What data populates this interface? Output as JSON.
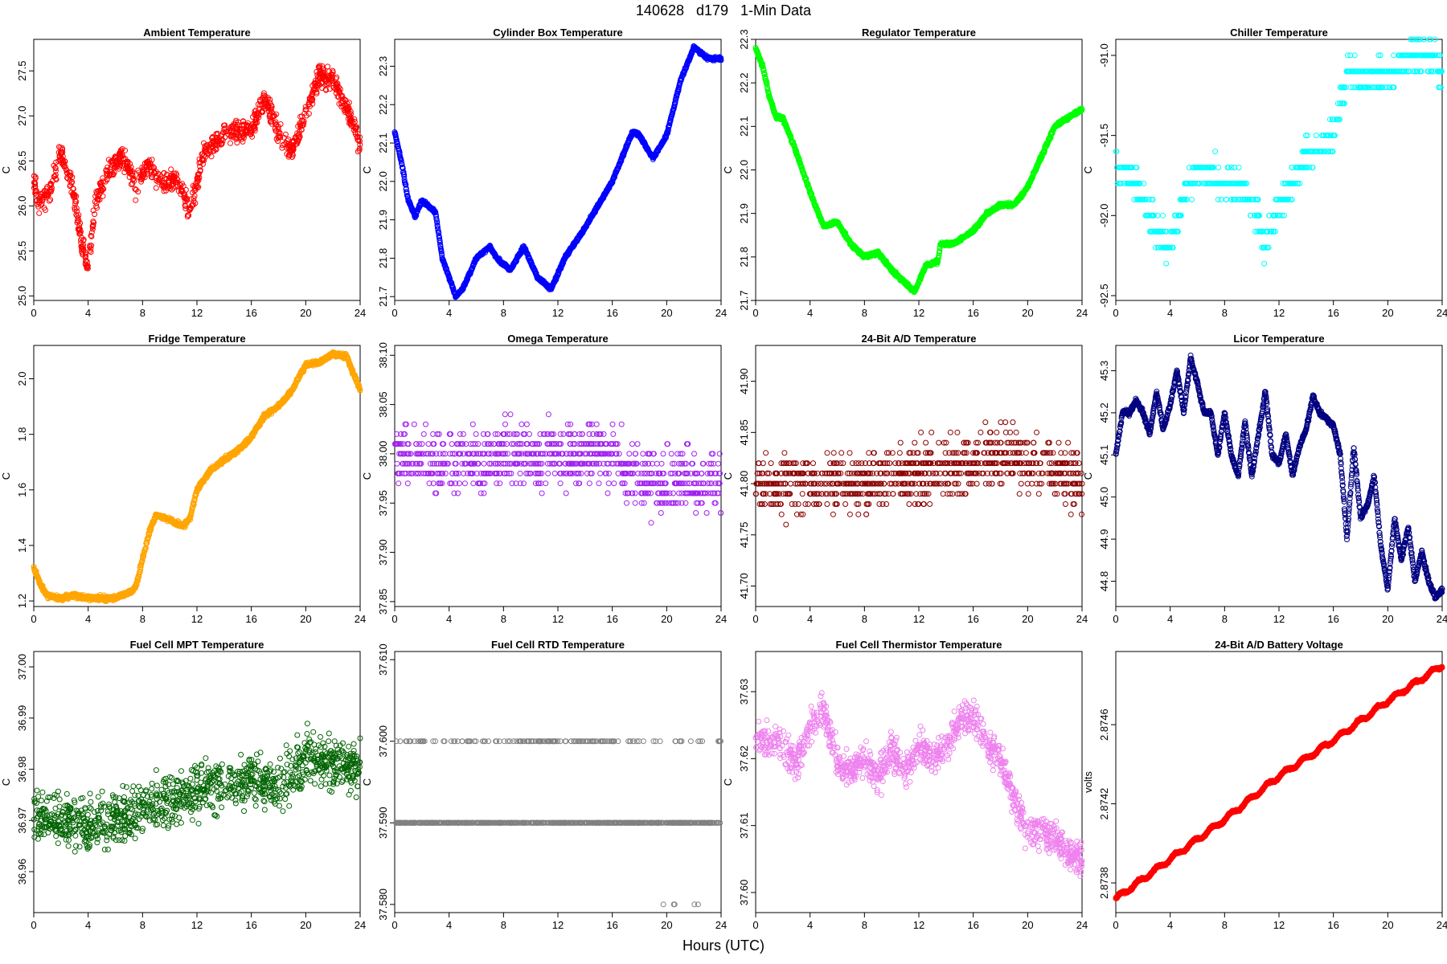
{
  "figure": {
    "title": "140628   d179   1-Min Data",
    "xlabel": "Hours (UTC)"
  },
  "chart_data": [
    {
      "type": "scatter",
      "title": "Ambient Temperature",
      "ylabel": "C",
      "color": "#ff0000",
      "xlim": [
        0,
        24
      ],
      "ylim": [
        24.95,
        27.85
      ],
      "xticks": [
        0,
        4,
        8,
        12,
        16,
        20,
        24
      ],
      "yticks": [
        25.0,
        25.5,
        26.0,
        26.5,
        27.0,
        27.5
      ],
      "ytick_labels": [
        "25.0",
        "25.5",
        "26.0",
        "26.5",
        "27.0",
        "27.5"
      ],
      "style": "noisy",
      "noise": 0.17,
      "trend": [
        [
          0,
          26.3
        ],
        [
          0.3,
          26.05
        ],
        [
          1,
          26.1
        ],
        [
          2,
          26.6
        ],
        [
          3,
          26.1
        ],
        [
          3.5,
          25.6
        ],
        [
          4,
          25.3
        ],
        [
          4.5,
          26.0
        ],
        [
          5.5,
          26.4
        ],
        [
          6.5,
          26.55
        ],
        [
          7.5,
          26.2
        ],
        [
          8.5,
          26.5
        ],
        [
          9.5,
          26.25
        ],
        [
          10.5,
          26.3
        ],
        [
          11.5,
          25.95
        ],
        [
          12.5,
          26.6
        ],
        [
          14,
          26.8
        ],
        [
          16,
          26.85
        ],
        [
          17,
          27.2
        ],
        [
          18,
          26.8
        ],
        [
          19,
          26.6
        ],
        [
          20,
          27.05
        ],
        [
          21,
          27.45
        ],
        [
          22,
          27.4
        ],
        [
          23,
          27.1
        ],
        [
          24,
          26.7
        ]
      ]
    },
    {
      "type": "scatter",
      "title": "Cylinder Box Temperature",
      "ylabel": "C",
      "color": "#0000ff",
      "xlim": [
        0,
        24
      ],
      "ylim": [
        21.69,
        22.37
      ],
      "xticks": [
        0,
        4,
        8,
        12,
        16,
        20,
        24
      ],
      "yticks": [
        21.7,
        21.8,
        21.9,
        22.0,
        22.1,
        22.2,
        22.3
      ],
      "ytick_labels": [
        "21.7",
        "21.8",
        "21.9",
        "22.0",
        "22.1",
        "22.2",
        "22.3"
      ],
      "style": "smooth",
      "noise": 0.003,
      "trend": [
        [
          0,
          22.13
        ],
        [
          0.5,
          22.05
        ],
        [
          1,
          21.95
        ],
        [
          1.5,
          21.91
        ],
        [
          2,
          21.95
        ],
        [
          3,
          21.92
        ],
        [
          3.5,
          21.8
        ],
        [
          4.5,
          21.7
        ],
        [
          5,
          21.72
        ],
        [
          6,
          21.8
        ],
        [
          7,
          21.83
        ],
        [
          7.5,
          21.8
        ],
        [
          8.5,
          21.77
        ],
        [
          9.5,
          21.83
        ],
        [
          10.5,
          21.75
        ],
        [
          11.5,
          21.72
        ],
        [
          12.5,
          21.8
        ],
        [
          14,
          21.88
        ],
        [
          16,
          22.0
        ],
        [
          17.5,
          22.13
        ],
        [
          18,
          22.12
        ],
        [
          19,
          22.06
        ],
        [
          20,
          22.12
        ],
        [
          21,
          22.26
        ],
        [
          22,
          22.35
        ],
        [
          23,
          22.32
        ],
        [
          24,
          22.32
        ]
      ]
    },
    {
      "type": "scatter",
      "title": "Regulator Temperature",
      "ylabel": "C",
      "color": "#00ff00",
      "xlim": [
        0,
        24
      ],
      "ylim": [
        21.7,
        22.3
      ],
      "xticks": [
        0,
        4,
        8,
        12,
        16,
        20,
        24
      ],
      "yticks": [
        21.7,
        21.8,
        21.9,
        22.0,
        22.1,
        22.2,
        22.3
      ],
      "ytick_labels": [
        "21.7",
        "21.8",
        "21.9",
        "22.0",
        "22.1",
        "22.2",
        "22.3"
      ],
      "style": "smooth",
      "noise": 0.003,
      "trend": [
        [
          0,
          22.28
        ],
        [
          0.5,
          22.24
        ],
        [
          1,
          22.17
        ],
        [
          1.5,
          22.12
        ],
        [
          2,
          22.12
        ],
        [
          3,
          22.04
        ],
        [
          4,
          21.95
        ],
        [
          5,
          21.87
        ],
        [
          6,
          21.88
        ],
        [
          7,
          21.83
        ],
        [
          8,
          21.8
        ],
        [
          9,
          21.81
        ],
        [
          10,
          21.77
        ],
        [
          11,
          21.74
        ],
        [
          11.7,
          21.72
        ],
        [
          12.5,
          21.78
        ],
        [
          13.4,
          21.79
        ],
        [
          13.6,
          21.83
        ],
        [
          14.5,
          21.83
        ],
        [
          16,
          21.86
        ],
        [
          17,
          21.9
        ],
        [
          18,
          21.92
        ],
        [
          19,
          21.92
        ],
        [
          20,
          21.96
        ],
        [
          21,
          22.03
        ],
        [
          22,
          22.1
        ],
        [
          23,
          22.12
        ],
        [
          24,
          22.14
        ]
      ]
    },
    {
      "type": "scatter",
      "title": "Chiller Temperature",
      "ylabel": "C",
      "color": "#00ffff",
      "xlim": [
        0,
        24
      ],
      "ylim": [
        -92.53,
        -90.9
      ],
      "xticks": [
        0,
        4,
        8,
        12,
        16,
        20,
        24
      ],
      "yticks": [
        -92.5,
        -92.0,
        -91.5,
        -91.0
      ],
      "ytick_labels": [
        "-92.5",
        "-92.0",
        "-91.5",
        "-91.0"
      ],
      "style": "quantized",
      "noise": 0.13,
      "step": 0.1,
      "trend": [
        [
          0,
          -91.7
        ],
        [
          1,
          -91.75
        ],
        [
          2,
          -91.9
        ],
        [
          3,
          -92.1
        ],
        [
          4,
          -92.2
        ],
        [
          5,
          -91.85
        ],
        [
          6,
          -91.7
        ],
        [
          7,
          -91.75
        ],
        [
          8,
          -91.8
        ],
        [
          9,
          -91.8
        ],
        [
          10,
          -91.9
        ],
        [
          11,
          -92.2
        ],
        [
          12,
          -91.95
        ],
        [
          13,
          -91.8
        ],
        [
          14,
          -91.6
        ],
        [
          15,
          -91.6
        ],
        [
          16,
          -91.5
        ],
        [
          17,
          -91.1
        ],
        [
          18,
          -91.15
        ],
        [
          19,
          -91.15
        ],
        [
          20,
          -91.1
        ],
        [
          21,
          -91.05
        ],
        [
          22,
          -91.0
        ],
        [
          23,
          -91.0
        ],
        [
          24,
          -91.1
        ]
      ]
    },
    {
      "type": "scatter",
      "title": "Fridge Temperature",
      "ylabel": "C",
      "color": "#ffa500",
      "xlim": [
        0,
        24
      ],
      "ylim": [
        1.18,
        2.12
      ],
      "xticks": [
        0,
        4,
        8,
        12,
        16,
        20,
        24
      ],
      "yticks": [
        1.2,
        1.4,
        1.6,
        1.8,
        2.0
      ],
      "ytick_labels": [
        "1.2",
        "1.4",
        "1.6",
        "1.8",
        "2.0"
      ],
      "style": "smooth",
      "noise": 0.006,
      "trend": [
        [
          0,
          1.32
        ],
        [
          0.5,
          1.26
        ],
        [
          1,
          1.22
        ],
        [
          2,
          1.21
        ],
        [
          3,
          1.22
        ],
        [
          4,
          1.21
        ],
        [
          5,
          1.21
        ],
        [
          6,
          1.21
        ],
        [
          7,
          1.23
        ],
        [
          7.5,
          1.25
        ],
        [
          8,
          1.35
        ],
        [
          8.5,
          1.45
        ],
        [
          9,
          1.51
        ],
        [
          10,
          1.49
        ],
        [
          11,
          1.47
        ],
        [
          11.5,
          1.5
        ],
        [
          12,
          1.6
        ],
        [
          13,
          1.67
        ],
        [
          14,
          1.71
        ],
        [
          15,
          1.74
        ],
        [
          16,
          1.79
        ],
        [
          17,
          1.87
        ],
        [
          18,
          1.9
        ],
        [
          19,
          1.96
        ],
        [
          20,
          2.05
        ],
        [
          21,
          2.06
        ],
        [
          22,
          2.09
        ],
        [
          23,
          2.08
        ],
        [
          23.5,
          2.02
        ],
        [
          24,
          1.96
        ]
      ]
    },
    {
      "type": "scatter",
      "title": "Omega Temperature",
      "ylabel": "C",
      "color": "#a020f0",
      "xlim": [
        0,
        24
      ],
      "ylim": [
        37.845,
        38.11
      ],
      "xticks": [
        0,
        4,
        8,
        12,
        16,
        20,
        24
      ],
      "yticks": [
        37.85,
        37.9,
        37.95,
        38.0,
        38.05,
        38.1
      ],
      "ytick_labels": [
        "37.85",
        "37.90",
        "37.95",
        "38.00",
        "38.05",
        "38.10"
      ],
      "style": "quantized",
      "noise": 0.045,
      "step": 0.01,
      "trend": [
        [
          0,
          38.0
        ],
        [
          4,
          37.99
        ],
        [
          8,
          38.0
        ],
        [
          12,
          38.0
        ],
        [
          16,
          38.0
        ],
        [
          17,
          37.98
        ],
        [
          20,
          37.97
        ],
        [
          24,
          37.97
        ]
      ]
    },
    {
      "type": "scatter",
      "title": "24-Bit A/D Temperature",
      "ylabel": "C",
      "color": "#8b0000",
      "xlim": [
        0,
        24
      ],
      "ylim": [
        41.68,
        41.935
      ],
      "xticks": [
        0,
        4,
        8,
        12,
        16,
        20,
        24
      ],
      "yticks": [
        41.7,
        41.75,
        41.8,
        41.85,
        41.9
      ],
      "ytick_labels": [
        "41.70",
        "41.75",
        "41.80",
        "41.85",
        "41.90"
      ],
      "style": "quantized",
      "noise": 0.04,
      "step": 0.01,
      "trend": [
        [
          0,
          41.8
        ],
        [
          8,
          41.8
        ],
        [
          12,
          41.81
        ],
        [
          16,
          41.82
        ],
        [
          18,
          41.83
        ],
        [
          24,
          41.8
        ]
      ]
    },
    {
      "type": "scatter",
      "title": "Licor Temperature",
      "ylabel": "C",
      "color": "#000080",
      "xlim": [
        0,
        24
      ],
      "ylim": [
        44.74,
        45.36
      ],
      "xticks": [
        0,
        4,
        8,
        12,
        16,
        20,
        24
      ],
      "yticks": [
        44.8,
        44.9,
        45.0,
        45.1,
        45.2,
        45.3
      ],
      "ytick_labels": [
        "44.8",
        "44.9",
        "45.0",
        "45.1",
        "45.2",
        "45.3"
      ],
      "style": "smooth",
      "noise": 0.004,
      "trend": [
        [
          0,
          45.1
        ],
        [
          0.5,
          45.2
        ],
        [
          1,
          45.2
        ],
        [
          1.5,
          45.23
        ],
        [
          2,
          45.2
        ],
        [
          2.5,
          45.15
        ],
        [
          3,
          45.25
        ],
        [
          3.5,
          45.16
        ],
        [
          4,
          45.22
        ],
        [
          4.5,
          45.3
        ],
        [
          5,
          45.2
        ],
        [
          5.5,
          45.33
        ],
        [
          6,
          45.27
        ],
        [
          6.5,
          45.2
        ],
        [
          7,
          45.2
        ],
        [
          7.5,
          45.1
        ],
        [
          8,
          45.2
        ],
        [
          8.5,
          45.1
        ],
        [
          9,
          45.05
        ],
        [
          9.5,
          45.18
        ],
        [
          10,
          45.05
        ],
        [
          10.5,
          45.15
        ],
        [
          11,
          45.25
        ],
        [
          11.5,
          45.1
        ],
        [
          12,
          45.08
        ],
        [
          12.5,
          45.15
        ],
        [
          13,
          45.05
        ],
        [
          13.5,
          45.12
        ],
        [
          14,
          45.16
        ],
        [
          14.5,
          45.24
        ],
        [
          15,
          45.2
        ],
        [
          16,
          45.17
        ],
        [
          16.5,
          45.1
        ],
        [
          17,
          44.9
        ],
        [
          17.5,
          45.12
        ],
        [
          18,
          44.95
        ],
        [
          18.5,
          44.98
        ],
        [
          19,
          45.05
        ],
        [
          19.5,
          44.88
        ],
        [
          20,
          44.78
        ],
        [
          20.5,
          44.95
        ],
        [
          21,
          44.85
        ],
        [
          21.5,
          44.93
        ],
        [
          22,
          44.8
        ],
        [
          22.5,
          44.87
        ],
        [
          23,
          44.8
        ],
        [
          23.5,
          44.76
        ],
        [
          24,
          44.78
        ]
      ]
    },
    {
      "type": "scatter",
      "title": "Fuel Cell MPT Temperature",
      "ylabel": "C",
      "color": "#006400",
      "xlim": [
        0,
        24
      ],
      "ylim": [
        36.952,
        37.003
      ],
      "xticks": [
        0,
        4,
        8,
        12,
        16,
        20,
        24
      ],
      "yticks": [
        36.96,
        36.97,
        36.98,
        36.99,
        37.0
      ],
      "ytick_labels": [
        "36.96",
        "36.97",
        "36.98",
        "36.99",
        "37.00"
      ],
      "style": "noisy",
      "noise": 0.007,
      "trend": [
        [
          0,
          36.971
        ],
        [
          4,
          36.969
        ],
        [
          8,
          36.972
        ],
        [
          12,
          36.976
        ],
        [
          16,
          36.978
        ],
        [
          18,
          36.976
        ],
        [
          20,
          36.982
        ],
        [
          24,
          36.98
        ]
      ]
    },
    {
      "type": "scatter",
      "title": "Fuel Cell RTD Temperature",
      "ylabel": "C",
      "color": "#808080",
      "xlim": [
        0,
        24
      ],
      "ylim": [
        37.579,
        37.611
      ],
      "xticks": [
        0,
        4,
        8,
        12,
        16,
        20,
        24
      ],
      "yticks": [
        37.58,
        37.59,
        37.6,
        37.61
      ],
      "ytick_labels": [
        "37.580",
        "37.590",
        "37.600",
        "37.610"
      ],
      "style": "levels",
      "levels": [
        37.59,
        37.6,
        37.58
      ],
      "trend": [
        [
          0,
          37.59
        ],
        [
          24,
          37.59
        ]
      ]
    },
    {
      "type": "scatter",
      "title": "Fuel Cell Thermistor Temperature",
      "ylabel": "C",
      "color": "#ee82ee",
      "xlim": [
        0,
        24
      ],
      "ylim": [
        37.597,
        37.636
      ],
      "xticks": [
        0,
        4,
        8,
        12,
        16,
        20,
        24
      ],
      "yticks": [
        37.6,
        37.61,
        37.62,
        37.63
      ],
      "ytick_labels": [
        "37.60",
        "37.61",
        "37.62",
        "37.63"
      ],
      "style": "noisy",
      "noise": 0.0035,
      "trend": [
        [
          0,
          37.623
        ],
        [
          2,
          37.622
        ],
        [
          3,
          37.619
        ],
        [
          4,
          37.625
        ],
        [
          5,
          37.627
        ],
        [
          6,
          37.62
        ],
        [
          7,
          37.618
        ],
        [
          8,
          37.62
        ],
        [
          9,
          37.617
        ],
        [
          10,
          37.621
        ],
        [
          11,
          37.618
        ],
        [
          12,
          37.622
        ],
        [
          13,
          37.62
        ],
        [
          14,
          37.622
        ],
        [
          15,
          37.626
        ],
        [
          16,
          37.626
        ],
        [
          17,
          37.622
        ],
        [
          18,
          37.62
        ],
        [
          19,
          37.614
        ],
        [
          20,
          37.609
        ],
        [
          21,
          37.609
        ],
        [
          22,
          37.608
        ],
        [
          23,
          37.606
        ],
        [
          24,
          37.605
        ]
      ]
    },
    {
      "type": "scatter",
      "title": "24-Bit A/D Battery Voltage",
      "ylabel": "volts",
      "color": "#ff0000",
      "xlim": [
        0,
        24
      ],
      "ylim": [
        2.87365,
        2.87497
      ],
      "xticks": [
        0,
        4,
        8,
        12,
        16,
        20,
        24
      ],
      "yticks": [
        2.8738,
        2.8742,
        2.8746
      ],
      "ytick_labels": [
        "2.8738",
        "2.8742",
        "2.8746"
      ],
      "style": "smooth",
      "noise": 4e-06,
      "wave_amp": 1e-05,
      "wave_period": 1.35,
      "trend": [
        [
          0,
          2.87372
        ],
        [
          4,
          2.87392
        ],
        [
          8,
          2.87412
        ],
        [
          12,
          2.87434
        ],
        [
          16,
          2.87452
        ],
        [
          20,
          2.87472
        ],
        [
          24,
          2.8749
        ]
      ]
    }
  ]
}
